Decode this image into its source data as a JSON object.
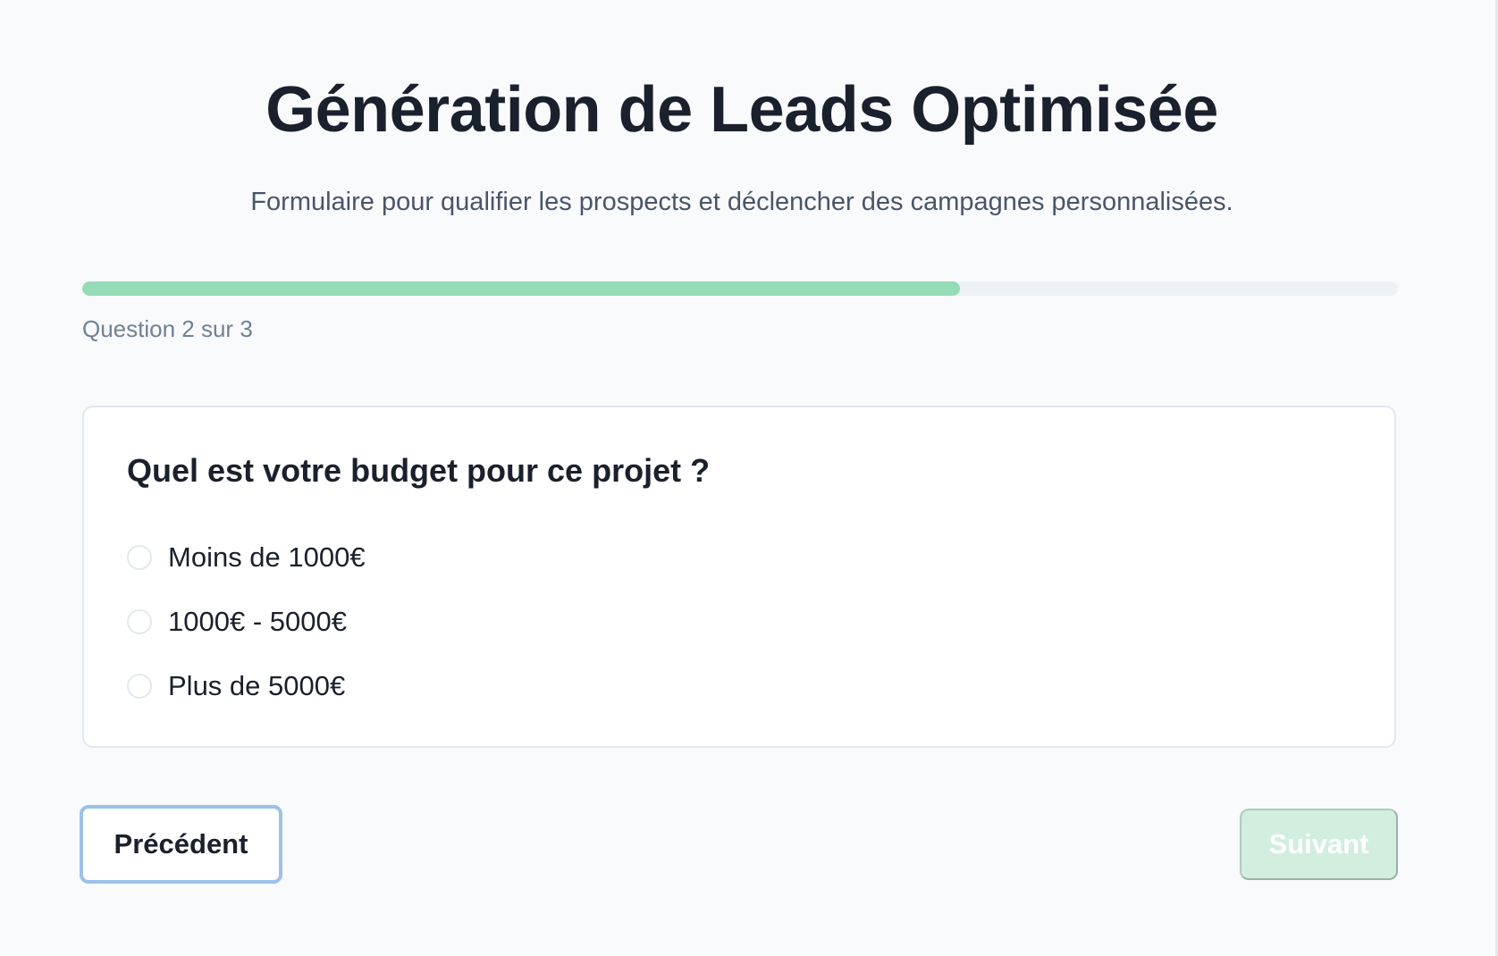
{
  "header": {
    "title": "Génération de Leads Optimisée",
    "subtitle": "Formulaire pour qualifier les prospects et déclencher des campagnes personnalisées."
  },
  "progress": {
    "percent": 66.7,
    "label": "Question 2 sur 3",
    "fill_color": "#93dcb5",
    "track_color": "#edf0f5"
  },
  "question": {
    "title": "Quel est votre budget pour ce projet ?",
    "options": [
      {
        "label": "Moins de 1000€",
        "selected": false
      },
      {
        "label": "1000€ - 5000€",
        "selected": false
      },
      {
        "label": "Plus de 5000€",
        "selected": false
      }
    ]
  },
  "nav": {
    "previous_label": "Précédent",
    "next_label": "Suivant",
    "next_disabled": true
  }
}
